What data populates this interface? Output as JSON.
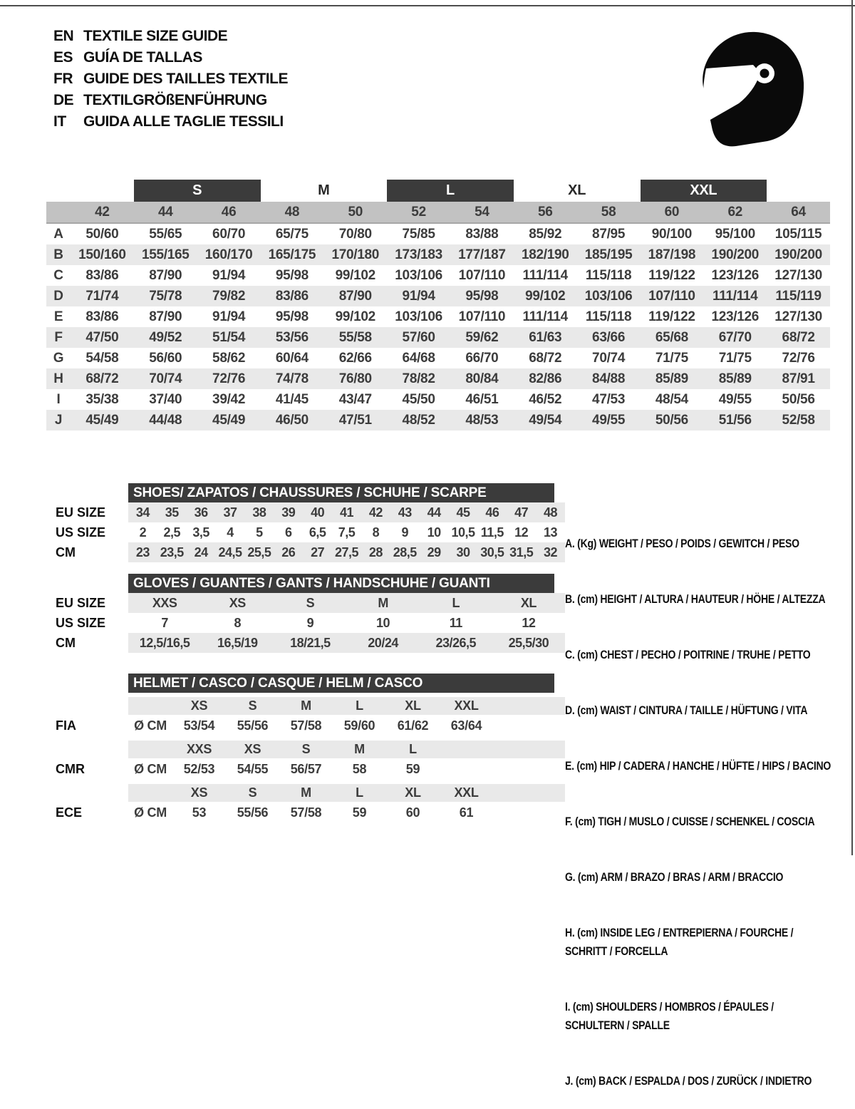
{
  "page": {
    "languages": [
      {
        "code": "EN",
        "label": "TEXTILE SIZE GUIDE"
      },
      {
        "code": "ES",
        "label": "GUÍA DE TALLAS"
      },
      {
        "code": "FR",
        "label": "GUIDE DES TAILLES TEXTILE"
      },
      {
        "code": "DE",
        "label": "TEXTILGRÖßENFÜHRUNG"
      },
      {
        "code": "IT",
        "label": "GUIDA ALLE TAGLIE TESSILI"
      }
    ],
    "icon": "racing-helmet"
  },
  "colors": {
    "title_bar": "#3b3b3b",
    "numeric_header_row": "#c2c2c2",
    "row_stripe": "#e9e9e9",
    "icon_black": "#0a0a0a"
  },
  "textile_table": {
    "size_bands": [
      {
        "label": "S",
        "style": "dark"
      },
      {
        "label": "M",
        "style": "light"
      },
      {
        "label": "L",
        "style": "dark"
      },
      {
        "label": "XL",
        "style": "light"
      },
      {
        "label": "XXL",
        "style": "dark"
      }
    ],
    "columns": [
      "42",
      "44",
      "46",
      "48",
      "50",
      "52",
      "54",
      "56",
      "58",
      "60",
      "62",
      "64"
    ],
    "rows": [
      {
        "key": "A",
        "values": [
          "50/60",
          "55/65",
          "60/70",
          "65/75",
          "70/80",
          "75/85",
          "83/88",
          "85/92",
          "87/95",
          "90/100",
          "95/100",
          "105/115"
        ]
      },
      {
        "key": "B",
        "values": [
          "150/160",
          "155/165",
          "160/170",
          "165/175",
          "170/180",
          "173/183",
          "177/187",
          "182/190",
          "185/195",
          "187/198",
          "190/200",
          "190/200"
        ]
      },
      {
        "key": "C",
        "values": [
          "83/86",
          "87/90",
          "91/94",
          "95/98",
          "99/102",
          "103/106",
          "107/110",
          "111/114",
          "115/118",
          "119/122",
          "123/126",
          "127/130"
        ]
      },
      {
        "key": "D",
        "values": [
          "71/74",
          "75/78",
          "79/82",
          "83/86",
          "87/90",
          "91/94",
          "95/98",
          "99/102",
          "103/106",
          "107/110",
          "111/114",
          "115/119"
        ]
      },
      {
        "key": "E",
        "values": [
          "83/86",
          "87/90",
          "91/94",
          "95/98",
          "99/102",
          "103/106",
          "107/110",
          "111/114",
          "115/118",
          "119/122",
          "123/126",
          "127/130"
        ]
      },
      {
        "key": "F",
        "values": [
          "47/50",
          "49/52",
          "51/54",
          "53/56",
          "55/58",
          "57/60",
          "59/62",
          "61/63",
          "63/66",
          "65/68",
          "67/70",
          "68/72"
        ]
      },
      {
        "key": "G",
        "values": [
          "54/58",
          "56/60",
          "58/62",
          "60/64",
          "62/66",
          "64/68",
          "66/70",
          "68/72",
          "70/74",
          "71/75",
          "71/75",
          "72/76"
        ]
      },
      {
        "key": "H",
        "values": [
          "68/72",
          "70/74",
          "72/76",
          "74/78",
          "76/80",
          "78/82",
          "80/84",
          "82/86",
          "84/88",
          "85/89",
          "85/89",
          "87/91"
        ]
      },
      {
        "key": "I",
        "values": [
          "35/38",
          "37/40",
          "39/42",
          "41/45",
          "43/47",
          "45/50",
          "46/51",
          "46/52",
          "47/53",
          "48/54",
          "49/55",
          "50/56"
        ]
      },
      {
        "key": "J",
        "values": [
          "45/49",
          "44/48",
          "45/49",
          "46/50",
          "47/51",
          "48/52",
          "48/53",
          "49/54",
          "49/55",
          "50/56",
          "51/56",
          "52/58"
        ]
      }
    ]
  },
  "shoes": {
    "title": "SHOES/ ZAPATOS / CHAUSSURES / SCHUHE / SCARPE",
    "rows": [
      {
        "label": "EU SIZE",
        "values": [
          "34",
          "35",
          "36",
          "37",
          "38",
          "39",
          "40",
          "41",
          "42",
          "43",
          "44",
          "45",
          "46",
          "47",
          "48"
        ]
      },
      {
        "label": "US SIZE",
        "values": [
          "2",
          "2,5",
          "3,5",
          "4",
          "5",
          "6",
          "6,5",
          "7,5",
          "8",
          "9",
          "10",
          "10,5",
          "11,5",
          "12",
          "13"
        ]
      },
      {
        "label": "CM",
        "values": [
          "23",
          "23,5",
          "24",
          "24,5",
          "25,5",
          "26",
          "27",
          "27,5",
          "28",
          "28,5",
          "29",
          "30",
          "30,5",
          "31,5",
          "32"
        ]
      }
    ]
  },
  "gloves": {
    "title": "GLOVES / GUANTES / GANTS / HANDSCHUHE / GUANTI",
    "rows": [
      {
        "label": "EU SIZE",
        "values": [
          "XXS",
          "XS",
          "S",
          "M",
          "L",
          "XL"
        ]
      },
      {
        "label": "US SIZE",
        "values": [
          "7",
          "8",
          "9",
          "10",
          "11",
          "12"
        ]
      },
      {
        "label": "CM",
        "values": [
          "12,5/16,5",
          "16,5/19",
          "18/21,5",
          "20/24",
          "23/26,5",
          "25,5/30"
        ]
      }
    ]
  },
  "helmet": {
    "title": "HELMET / CASCO / CASQUE / HELM / CASCO",
    "groups": [
      {
        "standard": "FIA",
        "unit": "Ø CM",
        "sizes": [
          "XS",
          "S",
          "M",
          "L",
          "XL",
          "XXL"
        ],
        "values": [
          "53/54",
          "55/56",
          "57/58",
          "59/60",
          "61/62",
          "63/64"
        ]
      },
      {
        "standard": "CMR",
        "unit": "Ø CM",
        "sizes": [
          "XXS",
          "XS",
          "S",
          "M",
          "L"
        ],
        "values": [
          "52/53",
          "54/55",
          "56/57",
          "58",
          "59"
        ]
      },
      {
        "standard": "ECE",
        "unit": "Ø CM",
        "sizes": [
          "XS",
          "S",
          "M",
          "L",
          "XL",
          "XXL"
        ],
        "values": [
          "53",
          "55/56",
          "57/58",
          "59",
          "60",
          "61"
        ]
      }
    ]
  },
  "legend": {
    "items": [
      "A. (Kg) WEIGHT / PESO / POIDS / GEWITCH / PESO",
      "B. (cm) HEIGHT / ALTURA / HAUTEUR / HÖHE / ALTEZZA",
      "C. (cm) CHEST / PECHO / POITRINE / TRUHE / PETTO",
      "D. (cm) WAIST / CINTURA / TAILLE / HÜFTUNG / VITA",
      "E. (cm) HIP / CADERA / HANCHE / HÜFTE / HIPS / BACINO",
      "F. (cm) TIGH / MUSLO / CUISSE / SCHENKEL / COSCIA",
      "G. (cm) ARM / BRAZO / BRAS / ARM / BRACCIO",
      "H. (cm) INSIDE LEG / ENTREPIERNA / FOURCHE /\nSCHRITT / FORCELLA",
      "I. (cm) SHOULDERS / HOMBROS / ÉPAULES /\nSCHULTERN / SPALLE",
      "J. (cm) BACK / ESPALDA / DOS / ZURÜCK / INDIETRO"
    ]
  }
}
